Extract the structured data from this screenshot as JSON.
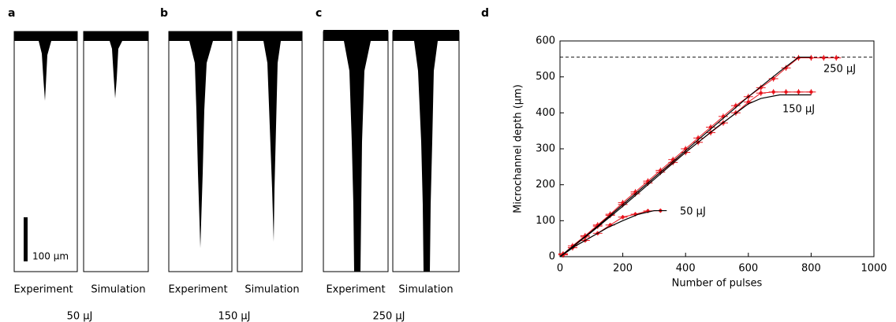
{
  "panels": [
    {
      "label": "a",
      "left": "Experiment",
      "right": "Simulation",
      "energy": "50 μJ",
      "scale_bar": "100 μm"
    },
    {
      "label": "b",
      "left": "Experiment",
      "right": "Simulation",
      "energy": "150 μJ"
    },
    {
      "label": "c",
      "left": "Experiment",
      "right": "Simulation",
      "energy": "250 μJ"
    }
  ],
  "chart_data": {
    "type": "line",
    "label": "d",
    "x_label": "Number of pulses",
    "y_label": "Microchannel depth (μm)",
    "xlim": [
      0,
      1000
    ],
    "xticks": [
      0,
      200,
      400,
      600,
      800,
      1000
    ],
    "ylim": [
      0,
      600
    ],
    "yticks": [
      0,
      100,
      200,
      300,
      400,
      500,
      600
    ],
    "reference_line": 555,
    "annotations": [
      "250 μJ",
      "150 μJ",
      "50 μJ"
    ],
    "series": [
      {
        "color": "#e8141c",
        "xerr": 15,
        "yerr": 8,
        "x": [
          10,
          40,
          80,
          120,
          160,
          200,
          240,
          280,
          320,
          360,
          400,
          440,
          480,
          520,
          560,
          600,
          640,
          680,
          720,
          760,
          800,
          840,
          880
        ],
        "values": [
          7,
          30,
          58,
          88,
          118,
          150,
          180,
          210,
          240,
          270,
          300,
          330,
          360,
          390,
          420,
          445,
          470,
          495,
          525,
          553,
          553,
          553,
          553
        ]
      },
      {
        "color": "#e8141c",
        "xerr": 15,
        "yerr": 8,
        "x": [
          10,
          40,
          80,
          120,
          160,
          200,
          240,
          280,
          320,
          360,
          400,
          440,
          480,
          520,
          560,
          600,
          640,
          680,
          720,
          760,
          800
        ],
        "values": [
          5,
          25,
          55,
          85,
          115,
          145,
          175,
          205,
          235,
          262,
          290,
          318,
          345,
          372,
          400,
          430,
          455,
          458,
          458,
          458,
          458
        ]
      },
      {
        "color": "#e8141c",
        "xerr": 15,
        "yerr": 6,
        "x": [
          10,
          40,
          80,
          120,
          160,
          200,
          240,
          280,
          320
        ],
        "values": [
          8,
          25,
          45,
          65,
          88,
          110,
          118,
          127,
          128
        ]
      },
      {
        "color": "#000000",
        "x": [
          0,
          100,
          200,
          300,
          400,
          500,
          600,
          700,
          760,
          800
        ],
        "values": [
          0,
          70,
          145,
          220,
          295,
          370,
          445,
          515,
          555,
          555
        ]
      },
      {
        "color": "#000000",
        "x": [
          0,
          100,
          200,
          300,
          400,
          500,
          600,
          640,
          700,
          800
        ],
        "values": [
          0,
          68,
          140,
          215,
          290,
          360,
          425,
          440,
          450,
          450
        ]
      },
      {
        "color": "#000000",
        "x": [
          0,
          50,
          100,
          150,
          200,
          250,
          300,
          340
        ],
        "values": [
          0,
          30,
          55,
          80,
          100,
          118,
          128,
          128
        ]
      }
    ]
  }
}
